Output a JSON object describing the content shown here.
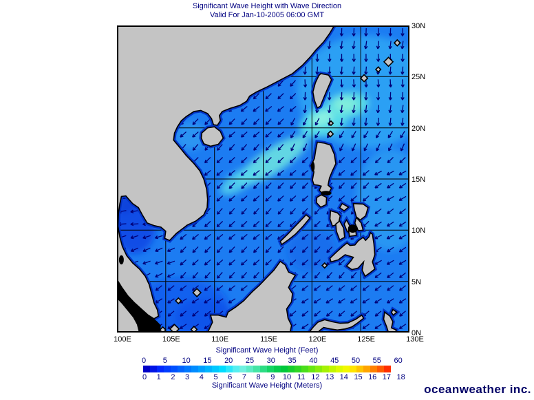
{
  "title": {
    "line1": "Significant Wave Height with Wave Direction",
    "line2": "Valid For Jan-10-2005 06:00 GMT"
  },
  "map": {
    "lon_min": 100,
    "lon_max": 130,
    "lat_min": 0,
    "lat_max": 30,
    "grid_interval_deg": 5,
    "x_axis_labels": [
      "100E",
      "105E",
      "110E",
      "115E",
      "120E",
      "125E",
      "130E"
    ],
    "y_axis_labels": [
      "30N",
      "25N",
      "20N",
      "15N",
      "10N",
      "5N",
      "0N"
    ],
    "colors": {
      "ocean": "#1C7CF2",
      "land": "#C4C4C4",
      "coastline": "#000000",
      "coastal_shallow": "#0334C8",
      "grid": "#000000",
      "arrow": "#000078",
      "no_data": "#000000",
      "border": "#000000"
    }
  },
  "colorbar": {
    "top_label": "Significant Wave Height (Feet)",
    "bottom_label": "Significant Wave Height (Meters)",
    "feet_ticks": [
      "0",
      "5",
      "10",
      "15",
      "20",
      "25",
      "30",
      "35",
      "40",
      "45",
      "50",
      "55",
      "60"
    ],
    "meter_ticks": [
      "0",
      "1",
      "2",
      "3",
      "4",
      "5",
      "6",
      "7",
      "8",
      "9",
      "10",
      "11",
      "12",
      "13",
      "14",
      "15",
      "16",
      "17",
      "18"
    ],
    "segment_colors": [
      "#0000C8",
      "#0014E6",
      "#0028FF",
      "#003CFF",
      "#0050FF",
      "#0064FF",
      "#0078FF",
      "#008CFF",
      "#00A0FF",
      "#00B4FF",
      "#00C8FF",
      "#00DCFF",
      "#2AE6FA",
      "#55EEF0",
      "#70F0E0",
      "#5CEAC4",
      "#44E4A4",
      "#2CDC84",
      "#14D464",
      "#04CC4C",
      "#00C83C",
      "#16CE2E",
      "#2ED624",
      "#4ADE1A",
      "#68E612",
      "#88EC0A",
      "#A6F204",
      "#C2F600",
      "#DCFA00",
      "#F2F800",
      "#FFE400",
      "#FFC400",
      "#FFA400",
      "#FF8000",
      "#FF5A00",
      "#FF2E00"
    ]
  },
  "logo": {
    "text": "oceanweather inc."
  },
  "text_colors": {
    "title": "#000080",
    "axis": "#000000",
    "legend": "#000080",
    "logo": "#000066"
  }
}
